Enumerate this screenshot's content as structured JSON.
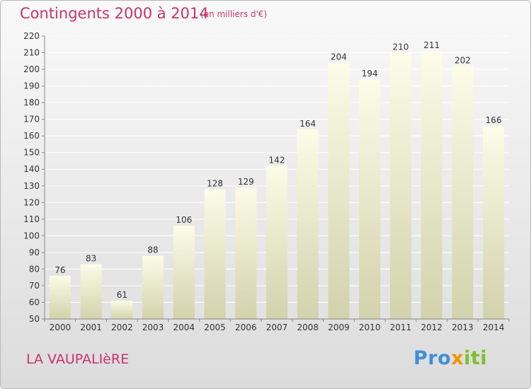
{
  "header": {
    "title": "Contingents 2000 à 2014",
    "subtitle": "(en milliers d'€)"
  },
  "footer": {
    "place": "LA VAUPALIèRE",
    "logo_text": "Proxiti"
  },
  "chart_data": {
    "type": "bar",
    "title": "Contingents 2000 à 2014",
    "subtitle": "(en milliers d'€)",
    "categories": [
      "2000",
      "2001",
      "2002",
      "2003",
      "2004",
      "2005",
      "2006",
      "2007",
      "2008",
      "2009",
      "2010",
      "2011",
      "2012",
      "2013",
      "2014"
    ],
    "values": [
      76,
      83,
      61,
      88,
      106,
      128,
      129,
      142,
      164,
      204,
      194,
      210,
      211,
      202,
      166
    ],
    "ylim": [
      50,
      220
    ],
    "ytick_step": 10,
    "grid": "horizontal",
    "colors": {
      "bar_light": "#fcfce8",
      "bar_dark": "#d2d2ac",
      "grid": "#ffffff",
      "axis": "#888888",
      "text": "#333333",
      "accent": "#c8346b"
    }
  }
}
